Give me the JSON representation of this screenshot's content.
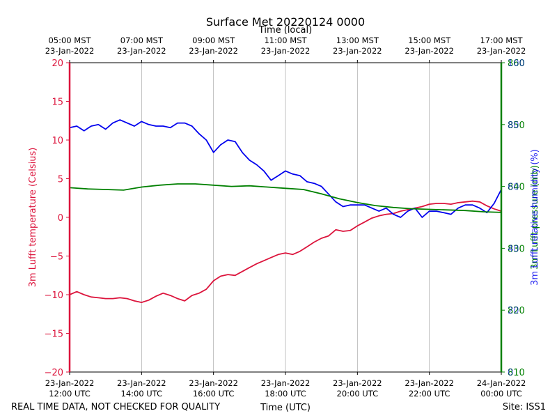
{
  "chart_data": {
    "type": "line",
    "title": "Surface Met 20220124 0000",
    "top_axis_label": "Time (local)",
    "xlabel": "Time (UTC)",
    "footer_left": "REAL TIME DATA, NOT CHECKED FOR QUALITY",
    "footer_right": "Site: ISS1",
    "x_range_hours_utc": [
      12,
      24
    ],
    "bottom_ticks": [
      {
        "hour": 12,
        "line1": "23-Jan-2022",
        "line2": "12:00 UTC"
      },
      {
        "hour": 14,
        "line1": "23-Jan-2022",
        "line2": "14:00 UTC"
      },
      {
        "hour": 16,
        "line1": "23-Jan-2022",
        "line2": "16:00 UTC"
      },
      {
        "hour": 18,
        "line1": "23-Jan-2022",
        "line2": "18:00 UTC"
      },
      {
        "hour": 20,
        "line1": "23-Jan-2022",
        "line2": "20:00 UTC"
      },
      {
        "hour": 22,
        "line1": "23-Jan-2022",
        "line2": "22:00 UTC"
      },
      {
        "hour": 24,
        "line1": "24-Jan-2022",
        "line2": "00:00 UTC"
      }
    ],
    "top_ticks": [
      {
        "hour": 12,
        "line1": "05:00 MST",
        "line2": "23-Jan-2022"
      },
      {
        "hour": 14,
        "line1": "07:00 MST",
        "line2": "23-Jan-2022"
      },
      {
        "hour": 16,
        "line1": "09:00 MST",
        "line2": "23-Jan-2022"
      },
      {
        "hour": 18,
        "line1": "11:00 MST",
        "line2": "23-Jan-2022"
      },
      {
        "hour": 20,
        "line1": "13:00 MST",
        "line2": "23-Jan-2022"
      },
      {
        "hour": 22,
        "line1": "15:00 MST",
        "line2": "23-Jan-2022"
      },
      {
        "hour": 24,
        "line1": "17:00 MST",
        "line2": "23-Jan-2022"
      }
    ],
    "left_axis": {
      "label": "3m Lufft temperature (Celsius)",
      "color": "#dc143c",
      "ylim": [
        -20,
        20
      ],
      "ticks": [
        -20,
        -15,
        -10,
        -5,
        0,
        5,
        10,
        15,
        20
      ],
      "tick_labels": [
        "−20",
        "−15",
        "−10",
        "−5",
        "0",
        "5",
        "10",
        "15",
        "20"
      ]
    },
    "right_axis_rh": {
      "label": "3m Lufft relative humidity (%)",
      "color": "#0000ee",
      "ylim": [
        0,
        100
      ],
      "ticks": [
        0,
        20,
        40,
        60,
        80,
        100
      ],
      "tick_labels": [
        "0",
        "20",
        "40",
        "60",
        "80",
        "100"
      ]
    },
    "right_axis_pressure": {
      "label": "3m Lufft pressure (mb)",
      "color": "#008000",
      "ylim": [
        810,
        860
      ],
      "ticks": [
        810,
        820,
        830,
        840,
        850,
        860
      ],
      "tick_labels": [
        "810",
        "820",
        "830",
        "840",
        "850",
        "860"
      ]
    },
    "series": [
      {
        "name": "3m Lufft temperature",
        "axis": "left",
        "color": "#dc143c",
        "x": [
          12.0,
          12.2,
          12.4,
          12.6,
          12.8,
          13.0,
          13.2,
          13.4,
          13.6,
          13.8,
          14.0,
          14.2,
          14.4,
          14.6,
          14.8,
          15.0,
          15.2,
          15.4,
          15.6,
          15.8,
          16.0,
          16.2,
          16.4,
          16.6,
          16.8,
          17.0,
          17.2,
          17.4,
          17.6,
          17.8,
          18.0,
          18.2,
          18.4,
          18.6,
          18.8,
          19.0,
          19.2,
          19.4,
          19.6,
          19.8,
          20.0,
          20.2,
          20.4,
          20.6,
          20.8,
          21.0,
          21.2,
          21.4,
          21.6,
          21.8,
          22.0,
          22.2,
          22.4,
          22.6,
          22.8,
          23.0,
          23.2,
          23.4,
          23.6,
          23.8,
          24.0
        ],
        "values": [
          -10.0,
          -9.6,
          -10.0,
          -10.3,
          -10.4,
          -10.5,
          -10.5,
          -10.4,
          -10.5,
          -10.8,
          -11.0,
          -10.7,
          -10.2,
          -9.8,
          -10.1,
          -10.5,
          -10.8,
          -10.1,
          -9.8,
          -9.3,
          -8.2,
          -7.6,
          -7.4,
          -7.5,
          -7.0,
          -6.5,
          -6.0,
          -5.6,
          -5.2,
          -4.8,
          -4.6,
          -4.8,
          -4.4,
          -3.8,
          -3.2,
          -2.7,
          -2.4,
          -1.6,
          -1.8,
          -1.7,
          -1.1,
          -0.6,
          -0.1,
          0.2,
          0.4,
          0.5,
          0.8,
          1.0,
          1.2,
          1.4,
          1.7,
          1.8,
          1.8,
          1.7,
          1.9,
          2.0,
          2.1,
          2.0,
          1.5,
          1.1,
          0.8
        ]
      },
      {
        "name": "3m Lufft relative humidity",
        "axis": "right_rh",
        "color": "#0000ee",
        "x": [
          12.0,
          12.2,
          12.4,
          12.6,
          12.8,
          13.0,
          13.2,
          13.4,
          13.6,
          13.8,
          14.0,
          14.2,
          14.4,
          14.6,
          14.8,
          15.0,
          15.2,
          15.4,
          15.6,
          15.8,
          16.0,
          16.2,
          16.4,
          16.6,
          16.8,
          17.0,
          17.2,
          17.4,
          17.6,
          17.8,
          18.0,
          18.2,
          18.4,
          18.6,
          18.8,
          19.0,
          19.2,
          19.4,
          19.6,
          19.8,
          20.0,
          20.2,
          20.4,
          20.6,
          20.8,
          21.0,
          21.2,
          21.4,
          21.6,
          21.8,
          22.0,
          22.2,
          22.4,
          22.6,
          22.8,
          23.0,
          23.2,
          23.4,
          23.6,
          23.8,
          24.0
        ],
        "values": [
          79,
          79.5,
          78,
          79.5,
          80,
          78.5,
          80.5,
          81.5,
          80.5,
          79.5,
          81,
          80,
          79.5,
          79.5,
          79,
          80.5,
          80.5,
          79.5,
          77,
          75,
          71,
          73.5,
          75,
          74.5,
          71,
          68.5,
          67,
          65,
          62,
          63.5,
          65,
          64,
          63.5,
          61.5,
          61,
          60,
          57.5,
          55,
          53.5,
          54,
          54,
          54,
          53,
          52,
          53,
          51,
          50,
          52,
          53,
          50,
          52,
          52,
          51.5,
          51,
          53,
          54,
          54,
          53,
          51.5,
          54.5,
          59
        ]
      },
      {
        "name": "3m Lufft pressure",
        "axis": "right_pressure",
        "color": "#008000",
        "x": [
          12.0,
          12.5,
          13.0,
          13.5,
          14.0,
          14.5,
          15.0,
          15.5,
          16.0,
          16.5,
          17.0,
          17.5,
          18.0,
          18.5,
          19.0,
          19.5,
          20.0,
          20.5,
          21.0,
          21.5,
          22.0,
          22.5,
          23.0,
          23.5,
          24.0
        ],
        "values": [
          839.8,
          839.6,
          839.5,
          839.4,
          839.9,
          840.2,
          840.4,
          840.4,
          840.2,
          840.0,
          840.1,
          839.9,
          839.7,
          839.5,
          838.8,
          838.0,
          837.4,
          836.9,
          836.6,
          836.4,
          836.3,
          836.2,
          836.1,
          835.9,
          835.8
        ]
      }
    ]
  }
}
